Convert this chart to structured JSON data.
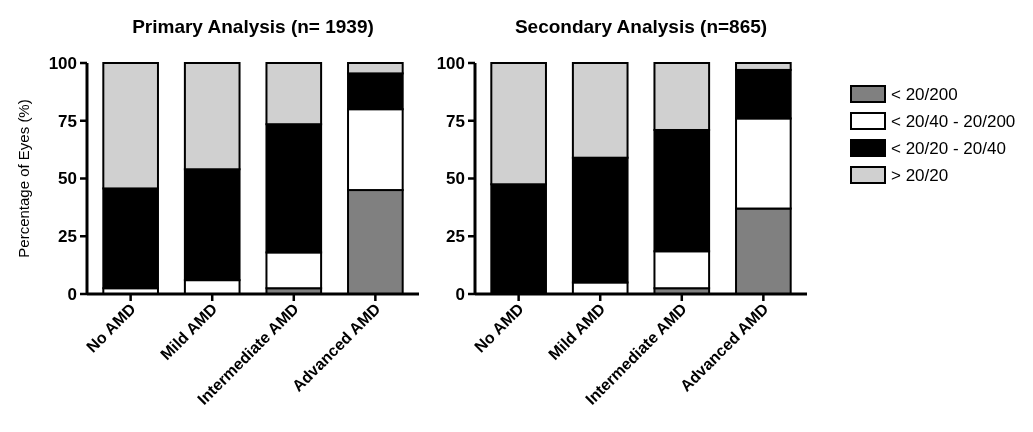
{
  "chart_data": [
    {
      "type": "bar",
      "title": "Primary Analysis (n= 1939)",
      "ylabel": "Percentage of Eyes (%)",
      "categories": [
        "No AMD",
        "Mild AMD",
        "Intermediate AMD",
        "Advanced AMD"
      ],
      "stacked": true,
      "ylim": [
        0,
        100
      ],
      "yticks": [
        0,
        25,
        50,
        75,
        100
      ],
      "grid": false,
      "legend": "right",
      "series": [
        {
          "name": "< 20/200",
          "color": "#808080",
          "values": [
            null,
            null,
            2.5,
            45
          ]
        },
        {
          "name": "< 20/40 - 20/200",
          "color": "#ffffff",
          "values": [
            2.5,
            6,
            15.5,
            35
          ]
        },
        {
          "name": "< 20/20 - 20/40",
          "color": "#000000",
          "values": [
            43.2,
            48,
            55.5,
            15.5
          ]
        },
        {
          "name": "> 20/20",
          "color": "#d0d0d0",
          "values": [
            54.3,
            46,
            26.5,
            4.5
          ]
        }
      ]
    },
    {
      "type": "bar",
      "title": "Secondary Analysis (n=865)",
      "categories": [
        "No AMD",
        "Mild AMD",
        "Intermediate AMD",
        "Advanced AMD"
      ],
      "stacked": true,
      "ylim": [
        0,
        100
      ],
      "yticks": [
        0,
        25,
        50,
        75,
        100
      ],
      "grid": false,
      "series": [
        {
          "color": "#808080",
          "values": [
            0,
            null,
            2.5,
            37
          ]
        },
        {
          "color": "#ffffff",
          "values": [
            null,
            5,
            16,
            39
          ]
        },
        {
          "color": "#000000",
          "values": [
            47.5,
            54,
            52.5,
            21
          ]
        },
        {
          "color": "#d0d0d0",
          "values": [
            52.5,
            41,
            29,
            3
          ]
        }
      ]
    }
  ]
}
